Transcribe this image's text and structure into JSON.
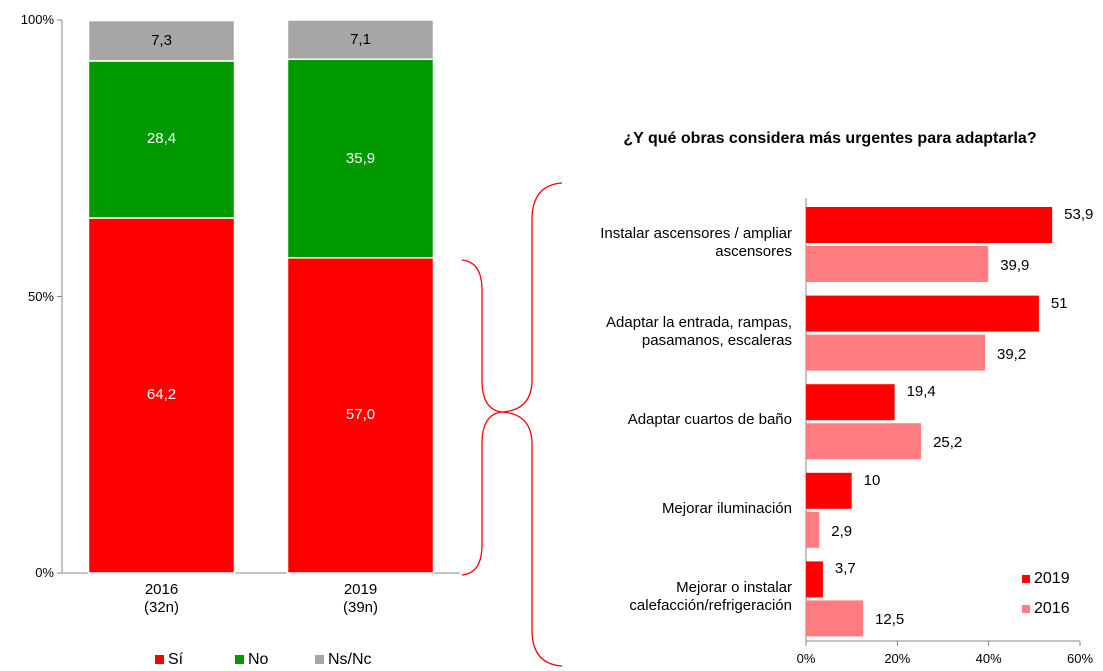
{
  "chart_data": [
    {
      "type": "stacked_bar",
      "categories": [
        "2016\n(32n)",
        "2019\n(39n)"
      ],
      "series": [
        {
          "name": "Sí",
          "color": "#ff0000",
          "values": [
            64.2,
            57.0
          ],
          "value_labels": [
            "64,2",
            "57,0"
          ]
        },
        {
          "name": "No",
          "color": "#009900",
          "values": [
            28.4,
            35.9
          ],
          "value_labels": [
            "28,4",
            "35,9"
          ]
        },
        {
          "name": "Ns/Nc",
          "color": "#a6a6a6",
          "values": [
            7.3,
            7.1
          ],
          "value_labels": [
            "7,3",
            "7,1"
          ]
        }
      ],
      "ylim": [
        0,
        100
      ],
      "yticks": [
        {
          "value": 0,
          "label": "0%"
        },
        {
          "value": 50,
          "label": "50%"
        },
        {
          "value": 100,
          "label": "100%"
        }
      ],
      "legend": "bottom"
    },
    {
      "type": "hbar",
      "title": "¿Y qué obras considera más urgentes para adaptarla?",
      "categories": [
        "Instalar ascensores / ampliar\nascensores",
        "Adaptar la entrada, rampas,\npasamanos, escaleras",
        "Adaptar cuartos de baño",
        "Mejorar iluminación",
        "Mejorar o instalar\ncalefacción/refrigeración"
      ],
      "series": [
        {
          "name": "2019",
          "color": "#ff0000",
          "values": [
            53.9,
            51,
            19.4,
            10,
            3.7
          ],
          "value_labels": [
            "53,9",
            "51",
            "19,4",
            "10",
            "3,7"
          ]
        },
        {
          "name": "2016",
          "color": "#ff7c80",
          "values": [
            39.9,
            39.2,
            25.2,
            2.9,
            12.5
          ],
          "value_labels": [
            "39,9",
            "39,2",
            "25,2",
            "2,9",
            "12,5"
          ]
        }
      ],
      "xlim": [
        0,
        60
      ],
      "xticks": [
        {
          "value": 0,
          "label": "0%"
        },
        {
          "value": 20,
          "label": "20%"
        },
        {
          "value": 40,
          "label": "40%"
        },
        {
          "value": 60,
          "label": "60%"
        }
      ],
      "legend": "bottom-right"
    }
  ]
}
